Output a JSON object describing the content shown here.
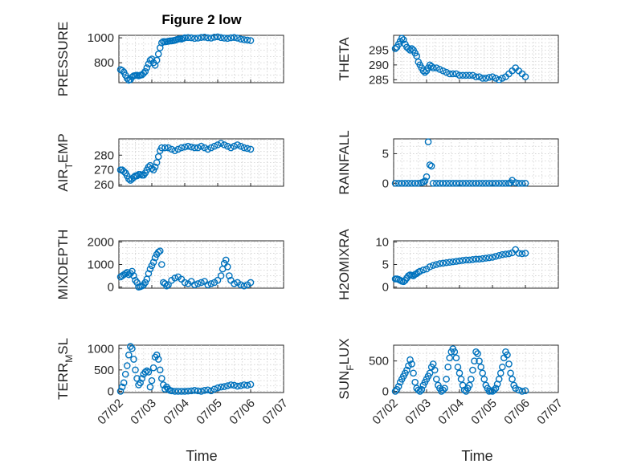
{
  "figure": {
    "title": "Figure 2 low",
    "xlabel": "Time",
    "marker_color": "#0072BD"
  },
  "x_ticks": [
    "07/02",
    "07/03",
    "07/04",
    "07/05",
    "07/06",
    "07/07"
  ],
  "chart_data": [
    {
      "id": "pressure",
      "type": "scatter",
      "ylabel": "PRESSURE",
      "ylabel_sub": "",
      "title": "Figure 2 low",
      "xlim": [
        0,
        5
      ],
      "ylim": [
        640,
        1020
      ],
      "yticks": [
        800,
        1000
      ],
      "grid": true,
      "x": [
        0.05,
        0.1,
        0.15,
        0.2,
        0.25,
        0.3,
        0.35,
        0.4,
        0.45,
        0.5,
        0.55,
        0.6,
        0.65,
        0.7,
        0.75,
        0.8,
        0.85,
        0.9,
        0.95,
        1.0,
        1.05,
        1.1,
        1.15,
        1.2,
        1.25,
        1.3,
        1.35,
        1.4,
        1.45,
        1.5,
        1.55,
        1.6,
        1.65,
        1.7,
        1.75,
        1.8,
        1.85,
        1.9,
        1.95,
        2.0,
        2.1,
        2.2,
        2.3,
        2.4,
        2.5,
        2.6,
        2.7,
        2.8,
        2.9,
        3.0,
        3.1,
        3.2,
        3.3,
        3.4,
        3.5,
        3.6,
        3.7,
        3.8,
        3.9,
        4.0
      ],
      "y": [
        745,
        738,
        725,
        700,
        675,
        660,
        665,
        685,
        695,
        698,
        700,
        695,
        700,
        703,
        715,
        730,
        760,
        790,
        820,
        830,
        800,
        780,
        820,
        870,
        920,
        960,
        970,
        968,
        970,
        972,
        975,
        975,
        978,
        980,
        985,
        990,
        992,
        990,
        995,
        1000,
        1002,
        1000,
        995,
        998,
        1003,
        1005,
        1000,
        998,
        1005,
        1008,
        1002,
        998,
        995,
        1000,
        1003,
        998,
        990,
        985,
        982,
        978
      ]
    },
    {
      "id": "theta",
      "type": "scatter",
      "ylabel": "THETA",
      "ylabel_sub": "",
      "xlim": [
        0,
        5
      ],
      "ylim": [
        284,
        300
      ],
      "yticks": [
        285,
        290,
        295
      ],
      "grid": true,
      "x": [
        0.05,
        0.1,
        0.15,
        0.2,
        0.25,
        0.3,
        0.35,
        0.4,
        0.45,
        0.5,
        0.55,
        0.6,
        0.65,
        0.7,
        0.75,
        0.8,
        0.85,
        0.9,
        0.95,
        1.0,
        1.05,
        1.1,
        1.15,
        1.2,
        1.3,
        1.4,
        1.5,
        1.6,
        1.7,
        1.8,
        1.9,
        2.0,
        2.1,
        2.2,
        2.3,
        2.4,
        2.5,
        2.6,
        2.7,
        2.8,
        2.9,
        3.0,
        3.1,
        3.2,
        3.3,
        3.4,
        3.5,
        3.6,
        3.7,
        3.8,
        3.9,
        4.0
      ],
      "y": [
        295.5,
        296,
        297,
        298,
        299,
        298.5,
        297,
        296,
        295.5,
        295,
        295.5,
        295,
        294,
        293,
        291,
        290,
        289,
        288,
        287.5,
        288,
        289,
        290,
        289.5,
        289,
        289,
        288.5,
        288,
        287.5,
        287,
        287,
        287,
        286.5,
        286.5,
        286.5,
        286.5,
        286.5,
        286,
        286,
        285.5,
        285.5,
        285.8,
        286,
        285.5,
        285,
        285.5,
        286,
        287,
        288,
        289,
        288,
        287,
        286
      ]
    },
    {
      "id": "air_temp",
      "type": "scatter",
      "ylabel": "AIR",
      "ylabel_sub": "T",
      "ylabel_tail": "EMP",
      "xlim": [
        0,
        5
      ],
      "ylim": [
        259,
        291
      ],
      "yticks": [
        260,
        270,
        280
      ],
      "grid": true,
      "x": [
        0.05,
        0.1,
        0.15,
        0.2,
        0.25,
        0.3,
        0.35,
        0.4,
        0.45,
        0.5,
        0.55,
        0.6,
        0.65,
        0.7,
        0.75,
        0.8,
        0.85,
        0.9,
        0.95,
        1.0,
        1.05,
        1.1,
        1.15,
        1.2,
        1.25,
        1.3,
        1.4,
        1.5,
        1.6,
        1.7,
        1.8,
        1.9,
        2.0,
        2.1,
        2.2,
        2.3,
        2.4,
        2.5,
        2.6,
        2.7,
        2.8,
        2.9,
        3.0,
        3.1,
        3.2,
        3.3,
        3.4,
        3.5,
        3.6,
        3.7,
        3.8,
        3.9,
        4.0
      ],
      "y": [
        270,
        270,
        269,
        268,
        266,
        264,
        263,
        264,
        265,
        266,
        266,
        267,
        267,
        266.5,
        266.5,
        268,
        270,
        272,
        273,
        271,
        270,
        272,
        275,
        279,
        283,
        285,
        285,
        285,
        284,
        283,
        284,
        285,
        285.5,
        286,
        285.5,
        285,
        285,
        286,
        285,
        284,
        285,
        286,
        287,
        288,
        287,
        286,
        285,
        286,
        287,
        286,
        285,
        284.5,
        284
      ]
    },
    {
      "id": "rainfall",
      "type": "scatter",
      "ylabel": "RAINFALL",
      "ylabel_sub": "",
      "xlim": [
        0,
        5
      ],
      "ylim": [
        -0.5,
        7.5
      ],
      "yticks": [
        0,
        5
      ],
      "grid": true,
      "x": [
        0.05,
        0.15,
        0.25,
        0.35,
        0.45,
        0.55,
        0.65,
        0.75,
        0.85,
        0.9,
        0.95,
        1.0,
        1.05,
        1.1,
        1.15,
        1.2,
        1.3,
        1.4,
        1.5,
        1.6,
        1.7,
        1.8,
        1.9,
        2.0,
        2.1,
        2.2,
        2.3,
        2.4,
        2.5,
        2.6,
        2.7,
        2.8,
        2.9,
        3.0,
        3.1,
        3.2,
        3.3,
        3.4,
        3.5,
        3.55,
        3.6,
        3.7,
        3.8,
        3.9,
        4.0
      ],
      "y": [
        0,
        0,
        0,
        0,
        0,
        0,
        0,
        0,
        0.1,
        0.2,
        0.4,
        1.1,
        7.0,
        3.1,
        2.9,
        0,
        0,
        0,
        0,
        0,
        0,
        0,
        0,
        0,
        0,
        0,
        0,
        0,
        0,
        0,
        0,
        0,
        0,
        0,
        0,
        0,
        0,
        0,
        0,
        0.1,
        0.5,
        0.1,
        0,
        0,
        0
      ]
    },
    {
      "id": "mixdepth",
      "type": "scatter",
      "ylabel": "MIXDEPTH",
      "ylabel_sub": "",
      "xlim": [
        0,
        5
      ],
      "ylim": [
        -50,
        2050
      ],
      "yticks": [
        0,
        1000,
        2000
      ],
      "grid": true,
      "x": [
        0.05,
        0.1,
        0.15,
        0.2,
        0.25,
        0.3,
        0.35,
        0.4,
        0.45,
        0.5,
        0.55,
        0.6,
        0.65,
        0.7,
        0.75,
        0.8,
        0.85,
        0.9,
        0.95,
        1.0,
        1.05,
        1.1,
        1.15,
        1.2,
        1.25,
        1.3,
        1.35,
        1.4,
        1.45,
        1.5,
        1.6,
        1.7,
        1.8,
        1.9,
        2.0,
        2.1,
        2.2,
        2.3,
        2.4,
        2.5,
        2.6,
        2.7,
        2.8,
        2.9,
        3.0,
        3.1,
        3.15,
        3.2,
        3.25,
        3.3,
        3.35,
        3.4,
        3.5,
        3.6,
        3.7,
        3.8,
        3.9,
        4.0
      ],
      "y": [
        450,
        500,
        550,
        600,
        650,
        550,
        600,
        700,
        500,
        300,
        200,
        0,
        20,
        50,
        100,
        200,
        350,
        600,
        800,
        950,
        1100,
        1300,
        1450,
        1550,
        1600,
        1000,
        200,
        150,
        50,
        100,
        300,
        400,
        450,
        350,
        200,
        150,
        250,
        100,
        150,
        200,
        250,
        100,
        150,
        200,
        300,
        500,
        800,
        1050,
        1200,
        900,
        500,
        300,
        150,
        200,
        100,
        50,
        100,
        200
      ]
    },
    {
      "id": "h2omixra",
      "type": "scatter",
      "ylabel": "H2OMIXRA",
      "ylabel_sub": "",
      "xlim": [
        0,
        5
      ],
      "ylim": [
        -0.25,
        10.25
      ],
      "yticks": [
        0,
        5,
        10
      ],
      "grid": true,
      "x": [
        0.05,
        0.1,
        0.15,
        0.2,
        0.25,
        0.3,
        0.35,
        0.4,
        0.45,
        0.5,
        0.55,
        0.6,
        0.65,
        0.7,
        0.75,
        0.8,
        0.9,
        1.0,
        1.1,
        1.2,
        1.3,
        1.4,
        1.5,
        1.6,
        1.7,
        1.8,
        1.9,
        2.0,
        2.1,
        2.2,
        2.3,
        2.4,
        2.5,
        2.6,
        2.7,
        2.8,
        2.9,
        3.0,
        3.1,
        3.2,
        3.3,
        3.4,
        3.5,
        3.6,
        3.7,
        3.8,
        3.9,
        4.0
      ],
      "y": [
        1.8,
        1.8,
        1.7,
        1.5,
        1.3,
        1.2,
        1.5,
        2.0,
        2.5,
        2.7,
        2.6,
        2.5,
        2.8,
        3.0,
        3.3,
        3.5,
        3.8,
        4.0,
        4.5,
        4.8,
        5.0,
        5.2,
        5.3,
        5.4,
        5.5,
        5.6,
        5.7,
        5.8,
        5.9,
        6.0,
        6.0,
        6.1,
        6.2,
        6.2,
        6.3,
        6.4,
        6.5,
        6.6,
        6.8,
        7.0,
        7.2,
        7.3,
        7.4,
        7.6,
        8.3,
        7.5,
        7.4,
        7.5
      ]
    },
    {
      "id": "terr_msl",
      "type": "scatter",
      "ylabel": "TERR",
      "ylabel_sub": "M",
      "ylabel_tail": "SL",
      "xlim": [
        0,
        5
      ],
      "ylim": [
        -30,
        1080
      ],
      "yticks": [
        0,
        500,
        1000
      ],
      "grid": true,
      "x": [
        0.05,
        0.1,
        0.15,
        0.2,
        0.25,
        0.3,
        0.35,
        0.4,
        0.45,
        0.5,
        0.55,
        0.6,
        0.65,
        0.7,
        0.75,
        0.8,
        0.85,
        0.9,
        0.95,
        1.0,
        1.05,
        1.1,
        1.15,
        1.2,
        1.25,
        1.3,
        1.35,
        1.4,
        1.45,
        1.5,
        1.55,
        1.6,
        1.7,
        1.8,
        1.9,
        2.0,
        2.1,
        2.2,
        2.3,
        2.4,
        2.5,
        2.6,
        2.7,
        2.8,
        2.9,
        3.0,
        3.1,
        3.2,
        3.3,
        3.4,
        3.5,
        3.6,
        3.7,
        3.8,
        3.9,
        4.0
      ],
      "y": [
        0,
        100,
        200,
        400,
        600,
        850,
        1050,
        1000,
        750,
        500,
        300,
        150,
        200,
        300,
        400,
        450,
        480,
        450,
        100,
        250,
        550,
        800,
        850,
        750,
        500,
        300,
        150,
        50,
        100,
        50,
        20,
        10,
        0,
        0,
        0,
        0,
        5,
        10,
        20,
        10,
        0,
        20,
        30,
        10,
        50,
        80,
        100,
        110,
        130,
        150,
        140,
        120,
        130,
        150,
        140,
        160
      ]
    },
    {
      "id": "sun_flux",
      "type": "scatter",
      "ylabel": "SUN",
      "ylabel_sub": "F",
      "ylabel_tail": "LUX",
      "xlim": [
        0,
        5
      ],
      "ylim": [
        -20,
        760
      ],
      "yticks": [
        0,
        500
      ],
      "grid": true,
      "x": [
        0.05,
        0.1,
        0.15,
        0.2,
        0.25,
        0.3,
        0.35,
        0.4,
        0.45,
        0.5,
        0.55,
        0.6,
        0.65,
        0.7,
        0.75,
        0.8,
        0.85,
        0.9,
        0.95,
        1.0,
        1.05,
        1.1,
        1.15,
        1.2,
        1.25,
        1.3,
        1.35,
        1.4,
        1.45,
        1.5,
        1.55,
        1.6,
        1.65,
        1.7,
        1.75,
        1.8,
        1.85,
        1.9,
        1.95,
        2.0,
        2.05,
        2.1,
        2.15,
        2.2,
        2.25,
        2.3,
        2.35,
        2.4,
        2.45,
        2.5,
        2.55,
        2.6,
        2.65,
        2.7,
        2.75,
        2.8,
        2.85,
        2.9,
        2.95,
        3.0,
        3.05,
        3.1,
        3.15,
        3.2,
        3.25,
        3.3,
        3.35,
        3.4,
        3.45,
        3.5,
        3.55,
        3.6,
        3.65,
        3.7,
        3.8,
        3.9,
        4.0
      ],
      "y": [
        0,
        30,
        80,
        150,
        200,
        250,
        300,
        350,
        420,
        520,
        450,
        300,
        150,
        50,
        20,
        0,
        30,
        100,
        150,
        200,
        250,
        300,
        400,
        450,
        350,
        200,
        100,
        50,
        0,
        20,
        50,
        200,
        400,
        550,
        650,
        700,
        650,
        550,
        400,
        300,
        200,
        100,
        20,
        0,
        50,
        100,
        200,
        350,
        500,
        650,
        620,
        500,
        400,
        300,
        200,
        100,
        50,
        0,
        10,
        0,
        20,
        50,
        120,
        200,
        300,
        400,
        550,
        650,
        600,
        450,
        300,
        200,
        100,
        50,
        20,
        0,
        10
      ]
    }
  ]
}
